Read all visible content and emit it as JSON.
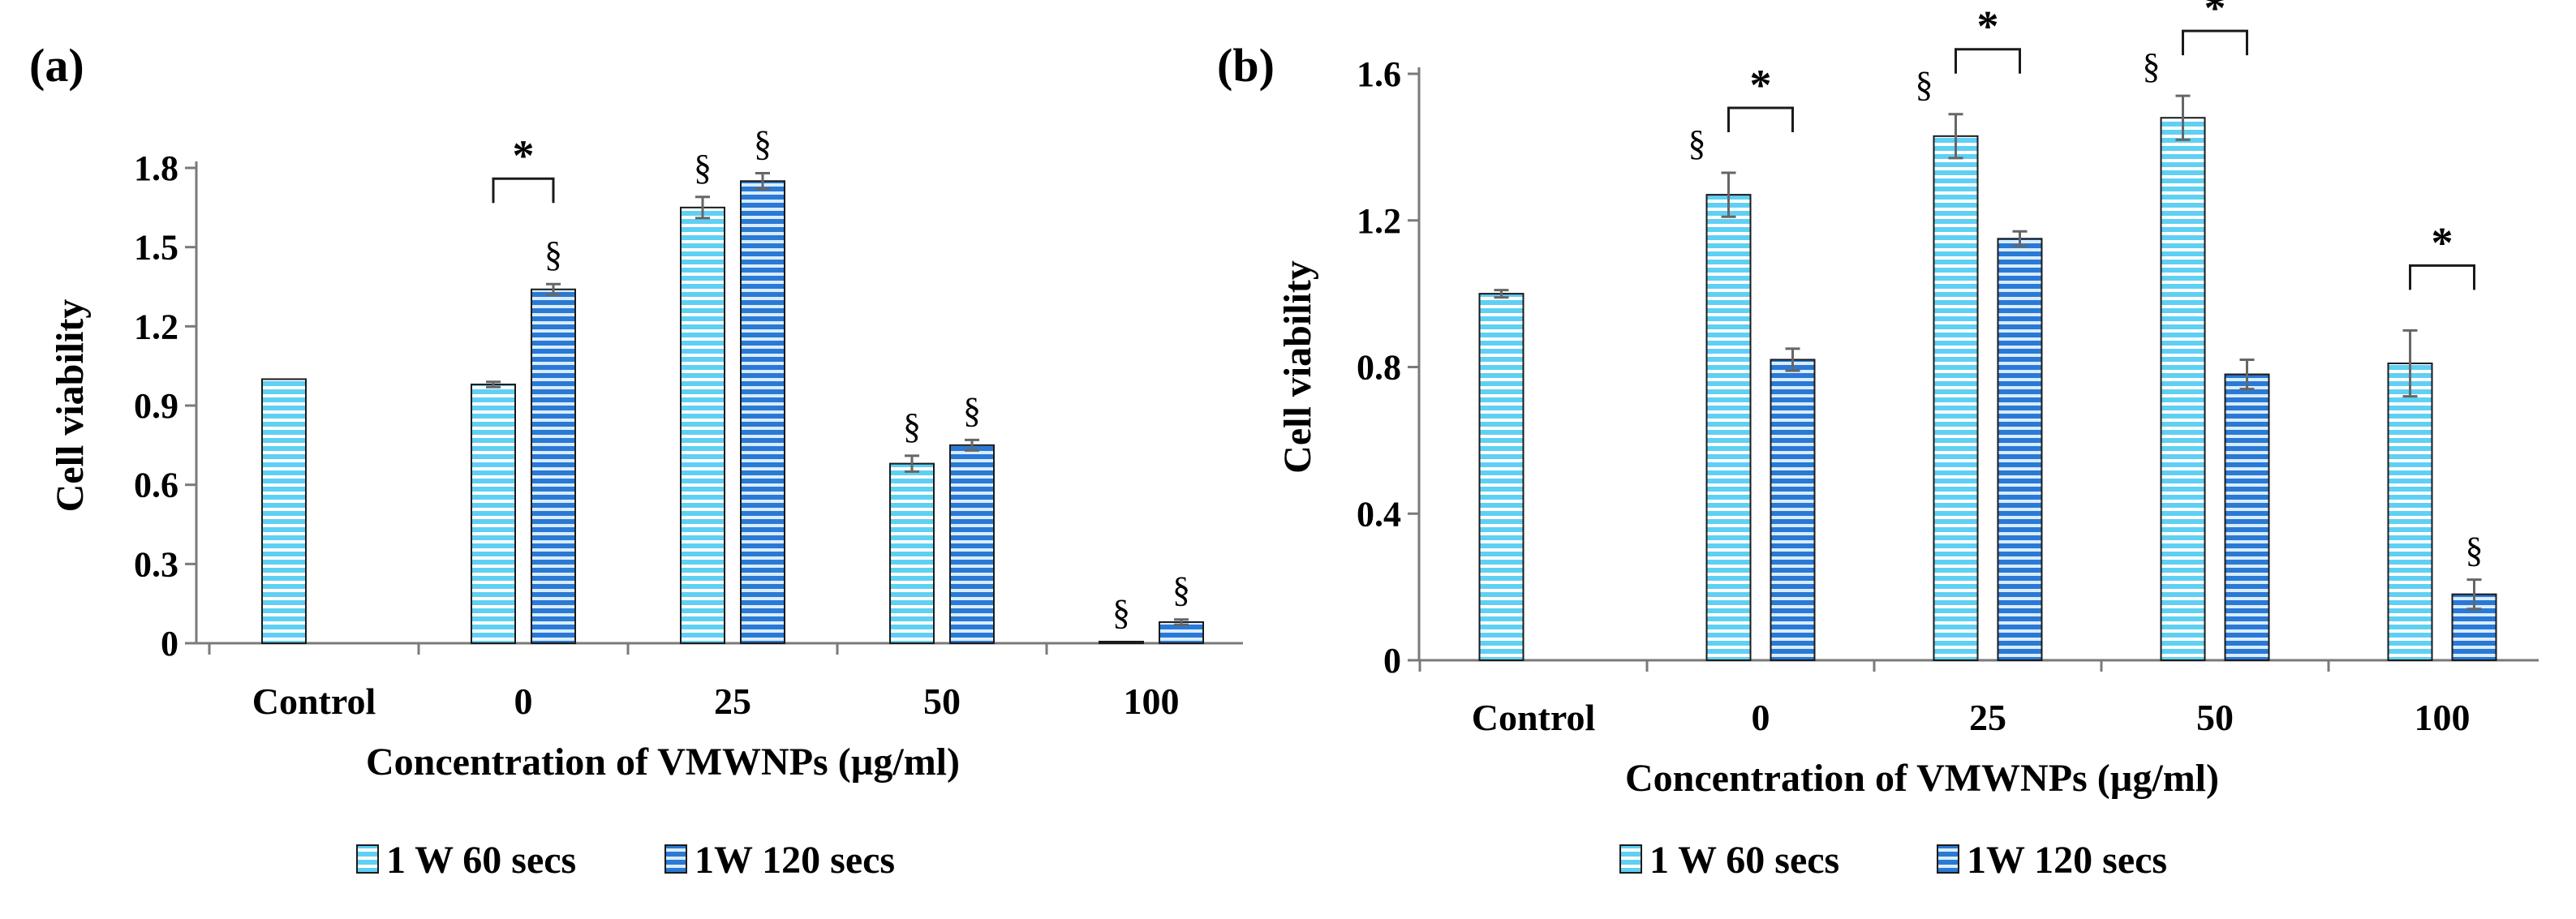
{
  "colors": {
    "series1": "#5fd0f3",
    "series2": "#2a79d4",
    "stripe": "#ffffff",
    "axis": "#7a7a7a",
    "error": "#666666",
    "text": "#000000"
  },
  "chart_data": [
    {
      "panel": "(a)",
      "type": "bar",
      "xlabel": "Concentration of VMWNPs (µg/ml)",
      "ylabel": "Cell viability",
      "ylim": [
        0,
        1.8
      ],
      "yticks": [
        "0",
        "0.3",
        "0.6",
        "0.9",
        "1.2",
        "1.5",
        "1.8"
      ],
      "categories": [
        "Control",
        "0",
        "25",
        "50",
        "100"
      ],
      "series": [
        {
          "name": "1 W 60 secs",
          "values": [
            1.0,
            0.98,
            1.65,
            0.68,
            0.005
          ],
          "errors": [
            0,
            0.01,
            0.04,
            0.03,
            0
          ],
          "marks": [
            "",
            "",
            "§",
            "§",
            "§"
          ]
        },
        {
          "name": "1W 120 secs",
          "values": [
            null,
            1.34,
            1.75,
            0.75,
            0.08
          ],
          "errors": [
            0,
            0.02,
            0.03,
            0.02,
            0.01
          ],
          "marks": [
            "",
            "§",
            "§",
            "§",
            "§"
          ]
        }
      ],
      "brackets": [
        {
          "category": 1,
          "label": "*"
        }
      ]
    },
    {
      "panel": "(b)",
      "type": "bar",
      "xlabel": "Concentration of VMWNPs (µg/ml)",
      "ylabel": "Cell viability",
      "ylim": [
        0,
        1.6
      ],
      "yticks": [
        "0",
        "0.4",
        "0.8",
        "1.2",
        "1.6"
      ],
      "categories": [
        "Control",
        "0",
        "25",
        "50",
        "100"
      ],
      "series": [
        {
          "name": "1 W 60 secs",
          "values": [
            1.0,
            1.27,
            1.43,
            1.48,
            0.81
          ],
          "errors": [
            0.01,
            0.06,
            0.06,
            0.06,
            0.09
          ],
          "marks": [
            "",
            "§",
            "§",
            "§",
            ""
          ]
        },
        {
          "name": "1W 120 secs",
          "values": [
            null,
            0.82,
            1.15,
            0.78,
            0.18
          ],
          "errors": [
            0,
            0.03,
            0.02,
            0.04,
            0.04
          ],
          "marks": [
            "",
            "",
            "",
            "",
            "§"
          ]
        }
      ],
      "brackets": [
        {
          "category": 1,
          "label": "*"
        },
        {
          "category": 2,
          "label": "*"
        },
        {
          "category": 3,
          "label": "*"
        },
        {
          "category": 4,
          "label": "*"
        }
      ]
    }
  ]
}
